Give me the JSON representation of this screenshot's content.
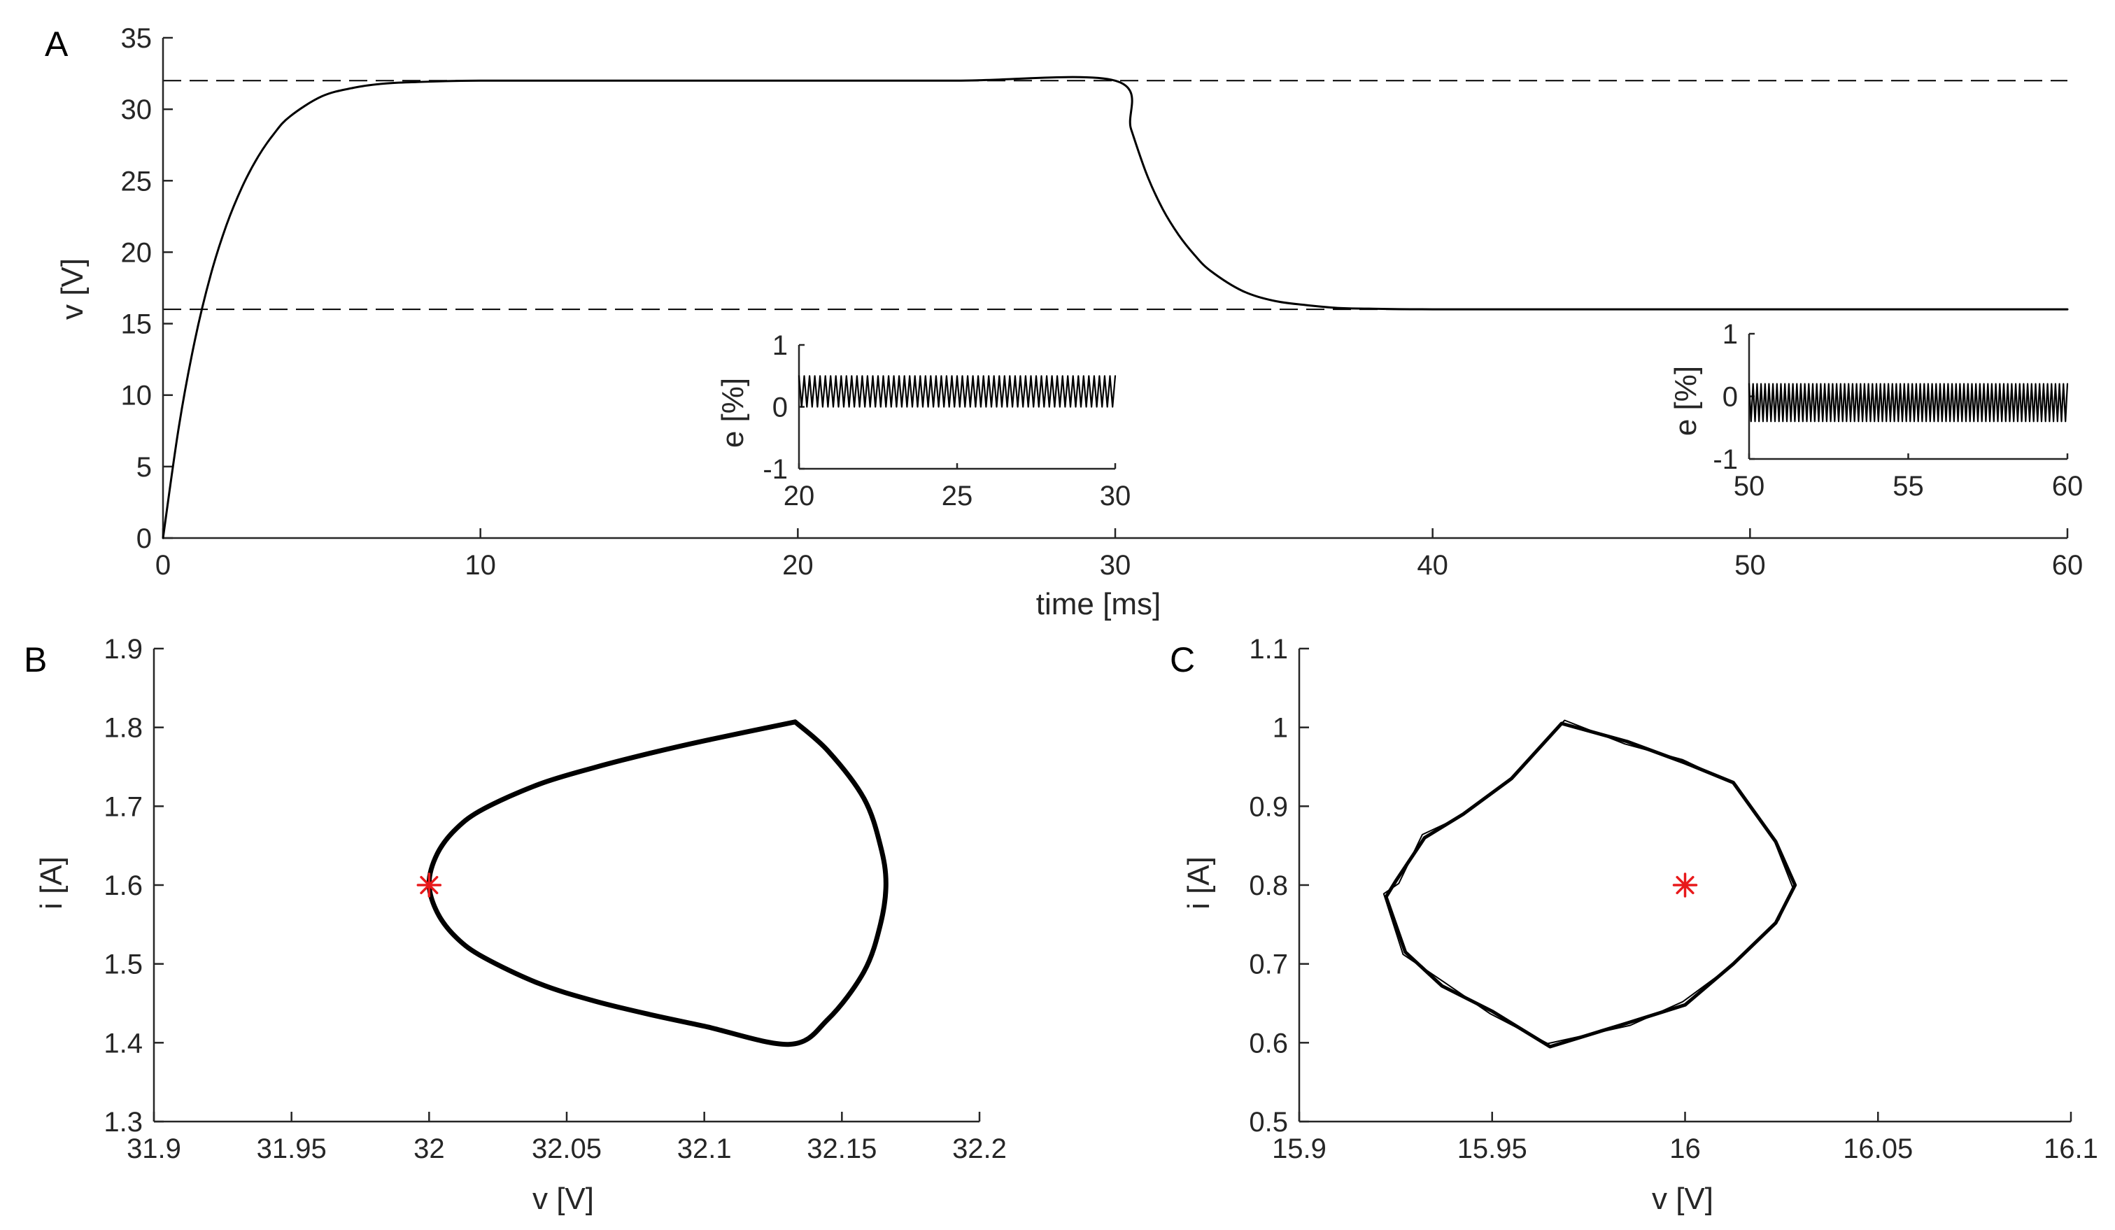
{
  "chart_data": [
    {
      "panel": "A",
      "type": "line",
      "xlabel": "time [ms]",
      "ylabel": "v [V]",
      "xlim": [
        0,
        60
      ],
      "ylim": [
        0,
        35
      ],
      "xticks": [
        0,
        10,
        20,
        30,
        40,
        50,
        60
      ],
      "yticks": [
        0,
        5,
        10,
        15,
        20,
        25,
        30,
        35
      ],
      "reference_lines": [
        32,
        16
      ],
      "series": [
        {
          "x": [
            0,
            0.5,
            1,
            1.5,
            2,
            2.5,
            3,
            3.5,
            4,
            5,
            6,
            7,
            8,
            10,
            15,
            20,
            25,
            30,
            30.5,
            31,
            31.5,
            32,
            32.5,
            33,
            34,
            35,
            36,
            37,
            38,
            40,
            45,
            50,
            55,
            60
          ],
          "y": [
            0,
            7.8,
            13.8,
            18.4,
            21.9,
            24.6,
            26.7,
            28.3,
            29.5,
            30.9,
            31.5,
            31.8,
            31.9,
            32,
            32,
            32,
            32,
            32,
            28.6,
            25.4,
            23,
            21.2,
            19.8,
            18.7,
            17.3,
            16.6,
            16.3,
            16.1,
            16.05,
            16,
            16,
            16,
            16,
            16
          ]
        }
      ]
    },
    {
      "panel": "A-inset-1",
      "type": "line",
      "ylabel": "e [%]",
      "xlim": [
        20,
        30
      ],
      "ylim": [
        -1,
        1
      ],
      "xticks": [
        20,
        25,
        30
      ],
      "yticks": [
        -1,
        0,
        1
      ],
      "band": {
        "min": 0,
        "max": 0.5,
        "cycles": 60
      }
    },
    {
      "panel": "A-inset-2",
      "type": "line",
      "ylabel": "e [%]",
      "xlim": [
        50,
        60
      ],
      "ylim": [
        -1,
        1
      ],
      "xticks": [
        50,
        55,
        60
      ],
      "yticks": [
        -1,
        0,
        1
      ],
      "band": {
        "min": -0.4,
        "max": 0.2,
        "cycles": 80
      }
    },
    {
      "panel": "B",
      "type": "line",
      "xlabel": "v [V]",
      "ylabel": "i [A]",
      "xlim": [
        31.9,
        32.2
      ],
      "ylim": [
        1.3,
        1.9
      ],
      "xticks": [
        "31.9",
        "31.95",
        "32",
        "32.05",
        "32.1",
        "32.15",
        "32.2"
      ],
      "yticks": [
        "1.3",
        "1.4",
        "1.5",
        "1.6",
        "1.7",
        "1.8",
        "1.9"
      ],
      "series": [
        {
          "x": [
            32.133,
            32.1,
            32.08,
            32.06,
            32.04,
            32.02,
            32.01,
            32.003,
            32.0,
            32.003,
            32.01,
            32.02,
            32.04,
            32.06,
            32.08,
            32.1,
            32.131,
            32.145,
            32.158,
            32.164,
            32.166,
            32.164,
            32.158,
            32.145,
            32.133
          ],
          "y": [
            1.807,
            1.783,
            1.767,
            1.749,
            1.728,
            1.697,
            1.672,
            1.64,
            1.602,
            1.565,
            1.533,
            1.508,
            1.475,
            1.453,
            1.436,
            1.421,
            1.398,
            1.43,
            1.49,
            1.55,
            1.602,
            1.65,
            1.71,
            1.77,
            1.807
          ]
        }
      ],
      "marker": {
        "x": 32.0,
        "y": 1.6,
        "symbol": "asterisk",
        "color": "#e8191b"
      }
    },
    {
      "panel": "C",
      "type": "line",
      "xlabel": "v [V]",
      "ylabel": "i [A]",
      "xlim": [
        15.9,
        16.1
      ],
      "ylim": [
        0.5,
        1.1
      ],
      "xticks": [
        "15.9",
        "15.95",
        "16",
        "16.05",
        "16.1"
      ],
      "yticks": [
        "0.5",
        "0.6",
        "0.7",
        "0.8",
        "0.9",
        "1",
        "1.1"
      ],
      "series": [
        {
          "x": [
            15.968,
            15.985,
            16.0,
            16.0125,
            16.0235,
            16.0285,
            16.0235,
            16.0125,
            16.0,
            15.985,
            15.965,
            15.95,
            15.937,
            15.9275,
            15.9225,
            15.925,
            15.9325,
            15.9425,
            15.955,
            15.968
          ],
          "y": [
            1.005,
            0.982,
            0.955,
            0.93,
            0.855,
            0.8,
            0.752,
            0.7,
            0.648,
            0.625,
            0.595,
            0.64,
            0.672,
            0.715,
            0.785,
            0.805,
            0.86,
            0.89,
            0.935,
            1.005
          ]
        }
      ],
      "marker": {
        "x": 16.0,
        "y": 0.8,
        "symbol": "asterisk",
        "color": "#e8191b"
      }
    }
  ],
  "panel_labels": {
    "a": "A",
    "b": "B",
    "c": "C"
  },
  "colors": {
    "trace": "#000000",
    "axis": "#262626",
    "marker": "#e8191b"
  }
}
